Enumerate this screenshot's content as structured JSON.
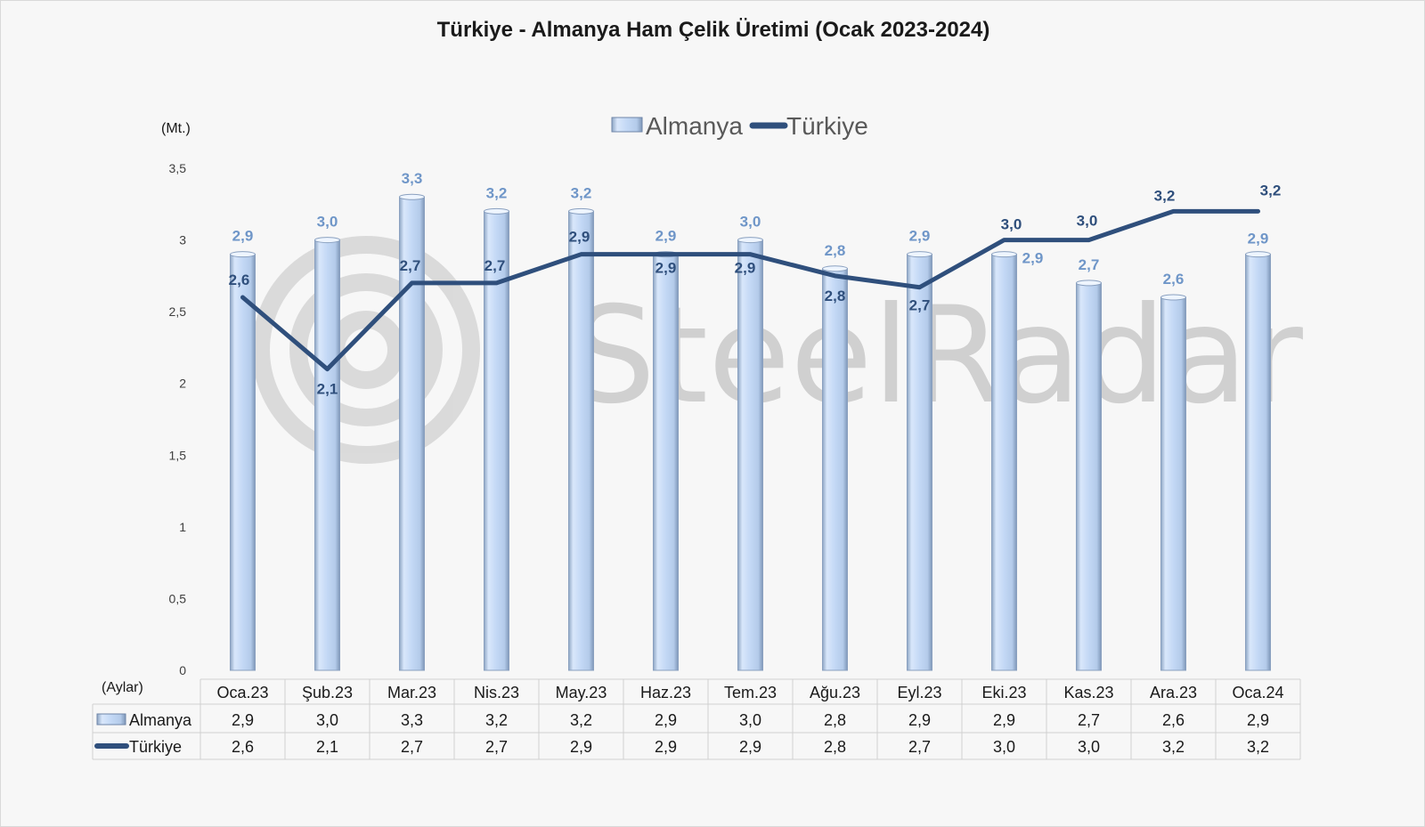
{
  "chart_data": {
    "type": "bar",
    "title": "Türkiye - Almanya Ham Çelik Üretimi (Ocak 2023-2024)",
    "y_unit_label": "(Mt.)",
    "x_axis_label": "(Aylar)",
    "watermark": "SteelRadar",
    "ylim": [
      0,
      3.5
    ],
    "y_ticks": [
      "0",
      "0,5",
      "1",
      "1,5",
      "2",
      "2,5",
      "3",
      "3,5"
    ],
    "grid": false,
    "legend_position": "top",
    "categories": [
      "Oca.23",
      "Şub.23",
      "Mar.23",
      "Nis.23",
      "May.23",
      "Haz.23",
      "Tem.23",
      "Ağu.23",
      "Eyl.23",
      "Eki.23",
      "Kas.23",
      "Ara.23",
      "Oca.24"
    ],
    "series": [
      {
        "name": "Almanya",
        "type": "bar",
        "color": "#c6dbf7",
        "values": [
          2.9,
          3.0,
          3.3,
          3.2,
          3.2,
          2.9,
          3.0,
          2.8,
          2.9,
          2.9,
          2.7,
          2.6,
          2.9
        ],
        "labels": [
          "2,9",
          "3,0",
          "3,3",
          "3,2",
          "3,2",
          "2,9",
          "3,0",
          "2,8",
          "2,9",
          "2,9",
          "2,7",
          "2,6",
          "2,9"
        ]
      },
      {
        "name": "Türkiye",
        "type": "line",
        "color": "#2f4f7c",
        "values": [
          2.6,
          2.1,
          2.7,
          2.7,
          2.9,
          2.9,
          2.9,
          2.75,
          2.67,
          3.0,
          3.0,
          3.2,
          3.2
        ],
        "labels": [
          "2,6",
          "2,1",
          "2,7",
          "2,7",
          "2,9",
          "2,9",
          "2,9",
          "2,8",
          "2,7",
          "3,0",
          "3,0",
          "3,2",
          "3,2"
        ]
      }
    ]
  }
}
